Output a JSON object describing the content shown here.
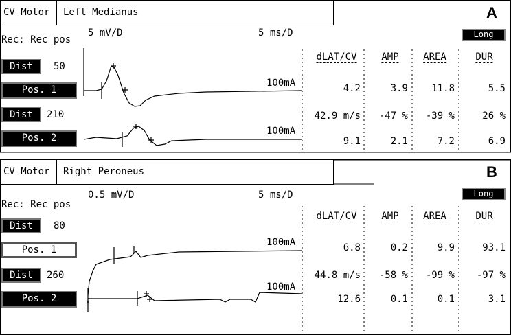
{
  "panels": [
    {
      "protocol": "CV Motor",
      "nerve": "Left Medianus",
      "letter": "A",
      "rec": "Rec: Rec pos",
      "sensitivity": "5 mV/D",
      "sweep": "5 ms/D",
      "mode": "Long",
      "sites": [
        {
          "dist_label": "Dist",
          "dist": "50",
          "pos": "Pos. 1",
          "stim": "100mA"
        },
        {
          "dist_label": "Dist",
          "dist": "210",
          "pos": "Pos. 2",
          "stim": "100mA"
        }
      ],
      "columns": [
        "dLAT/CV",
        "AMP",
        "AREA",
        "DUR"
      ],
      "rows": [
        [
          "4.2",
          "3.9",
          "11.8",
          "5.5"
        ],
        [
          "42.9 m/s",
          "-47 %",
          "-39 %",
          "26 %"
        ],
        [
          "9.1",
          "2.1",
          "7.2",
          "6.9"
        ]
      ]
    },
    {
      "protocol": "CV Motor",
      "nerve": "Right Peroneus",
      "letter": "B",
      "rec": "Rec: Rec pos",
      "sensitivity": "0.5 mV/D",
      "sweep": "5 ms/D",
      "mode": "Long",
      "sites": [
        {
          "dist_label": "Dist",
          "dist": "80",
          "pos": "Pos. 1",
          "stim": "100mA"
        },
        {
          "dist_label": "Dist",
          "dist": "260",
          "pos": "Pos. 2",
          "stim": "100mA"
        }
      ],
      "columns": [
        "dLAT/CV",
        "AMP",
        "AREA",
        "DUR"
      ],
      "rows": [
        [
          "6.8",
          "0.2",
          "9.9",
          "93.1"
        ],
        [
          "44.8 m/s",
          "-58 %",
          "-99 %",
          "-97 %"
        ],
        [
          "12.6",
          "0.1",
          "0.1",
          "3.1"
        ]
      ]
    }
  ]
}
